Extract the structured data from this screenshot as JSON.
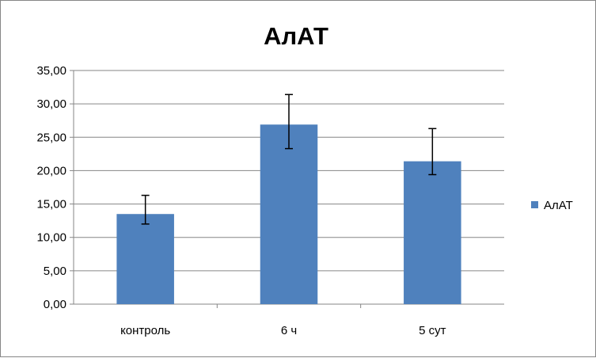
{
  "chart_data": {
    "type": "bar",
    "title": "АлАТ",
    "categories": [
      "контроль",
      "6 ч",
      "5 сут"
    ],
    "series": [
      {
        "name": "АлАТ",
        "values": [
          13.5,
          26.9,
          21.4
        ],
        "error_low": [
          12.0,
          23.3,
          19.4
        ],
        "error_high": [
          16.3,
          31.4,
          26.3
        ],
        "color": "#4F81BD"
      }
    ],
    "y_ticks": [
      "0,00",
      "5,00",
      "10,00",
      "15,00",
      "20,00",
      "25,00",
      "30,00",
      "35,00"
    ],
    "ylim": [
      0,
      35
    ],
    "grid": true,
    "legend_position": "right"
  }
}
